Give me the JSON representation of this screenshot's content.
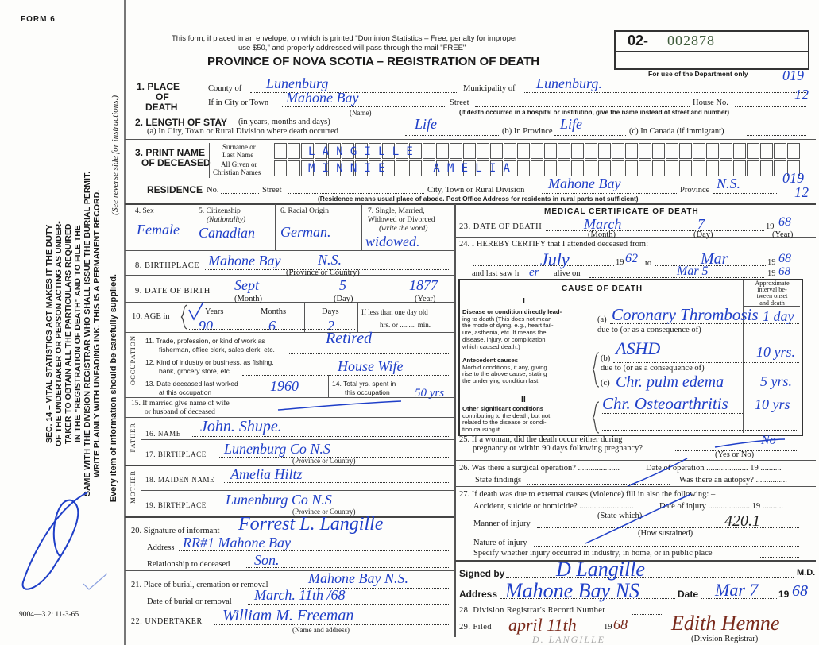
{
  "margin": {
    "form_label": "FORM 6",
    "notice_lines": [
      "SEC. 14 – VITAL STATISTICS ACT MAKES IT THE DUTY",
      "OF THE UNDERTAKER OR PERSON ACTING AS UNDER-",
      "TAKER TO OBTAIN ALL THE PARTICULARS REQUIRED",
      "IN THE \"REGISTRATION OF DEATH\" AND TO FILE THE",
      "SAME WITH THE DIVISION REGISTRAR WHO SHALL ISSUE THE BURIAL PERMIT.",
      "WRITE PLAINLY WITH UNFADING INK. THIS IS A PERMANENT RECORD."
    ],
    "supplied_note": "Every item of information should be carefully supplied.",
    "instructions_note": "(See reverse side for instructions.)",
    "print_code": "9004—3.2: 11-3-65"
  },
  "header": {
    "mail_notice_1": "This form, if placed in an envelope, on which is printed \"Dominion Statistics – Free, penalty for improper",
    "mail_notice_2": "use $50,\" and properly addressed will pass through the mail \"FREE\"",
    "title": "PROVINCE OF NOVA SCOTIA – REGISTRATION OF DEATH",
    "reg_prefix": "02-",
    "reg_number": "002878",
    "dept_use": "For use of the Department only"
  },
  "place_of_death": {
    "label_1": "1. PLACE",
    "label_2": "OF",
    "label_3": "DEATH",
    "county_label": "County of",
    "county": "Lunenburg",
    "municipality_label": "Municipality of",
    "municipality": "Lunenburg.",
    "city_label": "If in City or Town",
    "city": "Mahone Bay",
    "name_note": "(Name)",
    "street_label": "Street",
    "house_label": "House No.",
    "hospital_note": "(If death occurred in a hospital or institution, give the name instead of street and number)",
    "code_1": "019",
    "code_2": "12"
  },
  "length_of_stay": {
    "label": "2. LENGTH OF STAY",
    "label_note": "(in years, months and days)",
    "a_label": "(a) In City, Town or Rural Division where death occurred",
    "a": "Life",
    "b_label": "(b) In Province",
    "b": "Life",
    "c_label": "(c) In Canada (if immigrant)"
  },
  "deceased_name": {
    "label_1": "3. PRINT NAME",
    "label_2": "OF DECEASED",
    "surname_label_1": "Surname or",
    "surname_label_2": "Last Name",
    "given_label_1": "All Given or",
    "given_label_2": "Christian Names",
    "surname": "LANGILLE",
    "given": "MINNIE AMELIA"
  },
  "residence": {
    "label": "RESIDENCE",
    "no_label": "No.",
    "street_label": "Street",
    "city_label": "City, Town or Rural Division",
    "city": "Mahone Bay",
    "province_label": "Province",
    "province": "N.S.",
    "note": "(Residence means usual place of abode. Post Office Address for residents in rural parts not sufficient)",
    "code_1": "019",
    "code_2": "12"
  },
  "personal": {
    "sex_label": "4. Sex",
    "sex": "Female",
    "citizenship_label": "5. Citizenship",
    "citizenship_note": "(Nationality)",
    "citizenship": "Canadian",
    "racial_label": "6. Racial Origin",
    "racial": "German.",
    "marital_label_1": "7. Single, Married,",
    "marital_label_2": "Widowed or Divorced",
    "marital_label_3": "(write the word)",
    "marital": "widowed.",
    "birthplace_label": "8. BIRTHPLACE",
    "birthplace": "Mahone Bay",
    "birthplace_province": "N.S.",
    "province_note": "(Province or Country)",
    "dob_label": "9. DATE OF BIRTH",
    "dob_month": "Sept",
    "dob_day": "5",
    "dob_year": "1877",
    "month_note": "(Month)",
    "day_note": "(Day)",
    "year_note": "(Year)",
    "age_label": "10. AGE in",
    "years_label": "Years",
    "years": "90",
    "months_label": "Months",
    "months": "6",
    "days_label": "Days",
    "days": "2",
    "less_than_day": "If less than one day old",
    "hrs_min": "hrs. or ......... min."
  },
  "occupation": {
    "section_label": "OCCUPATION",
    "trade_label_1": "11. Trade, profession, or kind of work as",
    "trade_label_2": "fisherman, office clerk, sales clerk, etc.",
    "trade": "Retired",
    "industry_label_1": "12. Kind of industry or business, as fishing,",
    "industry_label_2": "bank, grocery store, etc.",
    "industry": "House Wife",
    "last_worked_label_1": "13. Date deceased last worked",
    "last_worked_label_2": "at this occupation",
    "last_worked": "1960",
    "total_years_label_1": "14. Total yrs. spent in",
    "total_years_label_2": "this occupation",
    "total_years": "50 yrs",
    "spouse_label_1": "15. If married give name of wife",
    "spouse_label_2": "or husband of deceased"
  },
  "parents": {
    "father_label": "FATHER",
    "mother_label": "MOTHER",
    "father_name_label": "16. NAME",
    "father_name": "John. Shupe.",
    "father_birthplace_label": "17. BIRTHPLACE",
    "father_birthplace": "Lunenburg Co N.S",
    "mother_maiden_label": "18. MAIDEN NAME",
    "mother_maiden": "Amelia Hiltz",
    "mother_birthplace_label": "19. BIRTHPLACE",
    "mother_birthplace": "Lunenburg Co N.S",
    "province_note": "(Province or Country)"
  },
  "informant": {
    "signature_label": "20. Signature of informant",
    "signature": "Forrest L. Langille",
    "address_label": "Address",
    "address": "RR#1 Mahone Bay",
    "relationship_label": "Relationship to deceased",
    "relationship": "Son."
  },
  "burial": {
    "place_label": "21. Place of burial, cremation or removal",
    "place": "Mahone Bay N.S.",
    "date_label": "Date of burial or removal",
    "date": "March. 11th /68",
    "undertaker_label": "22. UNDERTAKER",
    "undertaker": "William M. Freeman",
    "undertaker_note": "(Name and address)"
  },
  "medical": {
    "title": "MEDICAL CERTIFICATE OF DEATH",
    "death_label": "23. DATE OF DEATH",
    "death_month": "March",
    "death_day": "7",
    "death_year_prefix": "19",
    "death_year": "68",
    "month_note": "(Month)",
    "day_note": "(Day)",
    "year_note": "(Year)",
    "certify_label": "24. I HEREBY CERTIFY that I attended deceased from:",
    "from_month": "July",
    "from_year_prefix": "19",
    "from_year": "62",
    "to_label": "to",
    "to_month": "Mar",
    "to_year_prefix": "19",
    "to_year": "68",
    "last_saw_label": "and last saw h",
    "last_saw_pronoun": "er",
    "alive_on_label": "alive on",
    "last_saw_date": "Mar 5",
    "last_saw_year_prefix": "19",
    "last_saw_year": "68"
  },
  "cause": {
    "title": "CAUSE OF DEATH",
    "interval_header": [
      "Approximate",
      "interval be-",
      "tween onset",
      "and death"
    ],
    "part_1": "I",
    "direct_label": [
      "Disease or condition directly lead-",
      "ing to death (This does not mean",
      "the mode of dying, e.g., heart fail-",
      "ure, asthenia, etc. It means the",
      "disease, injury, or complication",
      "which caused death.)"
    ],
    "antecedent_label": [
      "Antecedent causes",
      "Morbid conditions, if any, giving",
      "rise to the above cause, stating",
      "the underlying condition last."
    ],
    "part_2": "II",
    "other_label": [
      "Other significant conditions",
      "contributing to the death, but not",
      "related to the disease or condi-",
      "tion causing it."
    ],
    "a_label": "(a)",
    "a": "Coronary Thrombosis",
    "a_interval": "1 day",
    "due_to": "due to (or as a consequence of)",
    "b_label": "(b)",
    "b": "ASHD",
    "b_interval": "10 yrs.",
    "c_label": "(c)",
    "c": "Chr. pulm edema",
    "c_interval": "5 yrs.",
    "other": "Chr. Osteoarthritis",
    "other_interval": "10 yrs"
  },
  "other_questions": {
    "pregnancy_label_1": "25. If a woman, did the death occur either during",
    "pregnancy_label_2": "pregnancy or within 90 days following pregnancy?",
    "yes_no_note": "(Yes or No)",
    "pregnancy": "No",
    "surgery_label": "26. Was there a surgical operation? ....................",
    "operation_date_label": "Date of operation ....................  19 ..........",
    "findings_label": "State findings",
    "autopsy_label": "Was there an autopsy? ...............",
    "external_label": "27. If death was due to external causes (violence) fill in also the following: –",
    "accident_label": "Accident, suicide or homicide? ..........................",
    "injury_date_label": "Date of injury ....................  19 ..........",
    "state_which": "(State which)",
    "manner_label": "Manner of injury",
    "how_sustained": "(How sustained)",
    "code": "420.1",
    "nature_label": "Nature of injury",
    "place_label": "Specify whether injury occurred in industry, in home, or in public place"
  },
  "signature": {
    "signed_label": "Signed by",
    "signed": "D Langille",
    "md": "M.D.",
    "address_label": "Address",
    "address": "Mahone Bay NS",
    "date_label": "Date",
    "date": "Mar 7",
    "year_prefix": "19",
    "year": "68"
  },
  "registration": {
    "record_label": "28. Division Registrar's Record Number",
    "filed_label": "29. Filed",
    "filed_date": "april 11th",
    "filed_year_prefix": "19",
    "filed_year": "68",
    "registrar_signature": "Edith Hemne",
    "registrar_note": "(Division Registrar)",
    "pencil_note": "D. LANGILLE"
  },
  "colors": {
    "blue_ink": "#1f3fc8",
    "brown_ink": "#7a2a1c",
    "reg_number": "#3d5a3a"
  }
}
